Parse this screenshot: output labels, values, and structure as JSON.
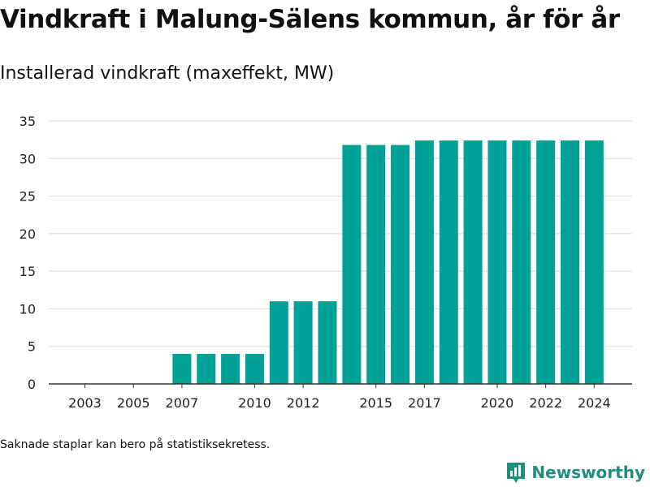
{
  "title": "Vindkraft i Malung-Sälens kommun, år för år",
  "subtitle": "Installerad vindkraft (maxeffekt, MW)",
  "footnote": "Saknade staplar kan bero på statistiksekretess.",
  "brand": {
    "name": "Newsworthy",
    "color": "#1e8f7a",
    "icon": "bar-chart-logo-icon"
  },
  "colors": {
    "bar": "#00a298",
    "grid": "#dddddd",
    "axis": "#333333"
  },
  "chart_data": {
    "type": "bar",
    "title": "Installerad vindkraft (maxeffekt, MW)",
    "xlabel": "",
    "ylabel": "",
    "categories": [
      "2003",
      "2004",
      "2005",
      "2006",
      "2007",
      "2008",
      "2009",
      "2010",
      "2011",
      "2012",
      "2013",
      "2014",
      "2015",
      "2016",
      "2017",
      "2018",
      "2019",
      "2020",
      "2021",
      "2022",
      "2023",
      "2024"
    ],
    "values": [
      0,
      0,
      0,
      0,
      4,
      4,
      4,
      4,
      11,
      11,
      11,
      31.8,
      31.8,
      31.8,
      32.4,
      32.4,
      32.4,
      32.4,
      32.4,
      32.4,
      32.4,
      32.4
    ],
    "x_tick_labels": [
      "2003",
      "2005",
      "2007",
      "2010",
      "2012",
      "2015",
      "2017",
      "2020",
      "2022",
      "2024"
    ],
    "y_ticks": [
      0,
      5,
      10,
      15,
      20,
      25,
      30,
      35
    ],
    "ylim": [
      0,
      35
    ],
    "grid": true,
    "legend": "none"
  }
}
